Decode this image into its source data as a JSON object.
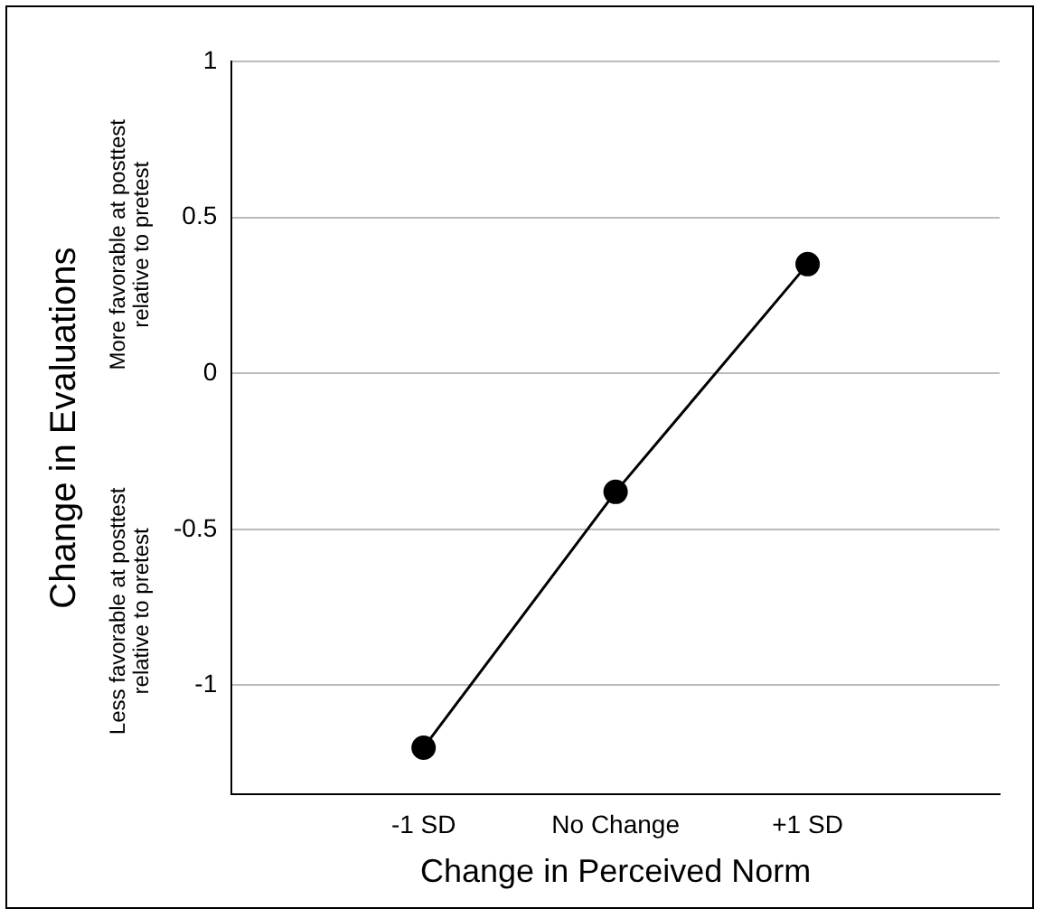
{
  "chart_data": {
    "type": "line",
    "xlabel": "Change in Perceived Norm",
    "ylabel": "Change in Evaluations",
    "annotations": [
      "More favorable at posttest\nrelative to pretest",
      "Less favorable at posttest\nrelative to pretest"
    ],
    "categories": [
      "-1 SD",
      "No Change",
      "+1 SD"
    ],
    "series": [
      {
        "color": "#000000",
        "values": [
          -1.2,
          -0.38,
          0.35
        ]
      }
    ],
    "ylim": [
      -1.35,
      1
    ],
    "yticks": [
      -1,
      -0.5,
      0,
      0.5,
      1
    ],
    "grid": "y",
    "marker": "circle",
    "line_style": "solid",
    "legend": false
  }
}
